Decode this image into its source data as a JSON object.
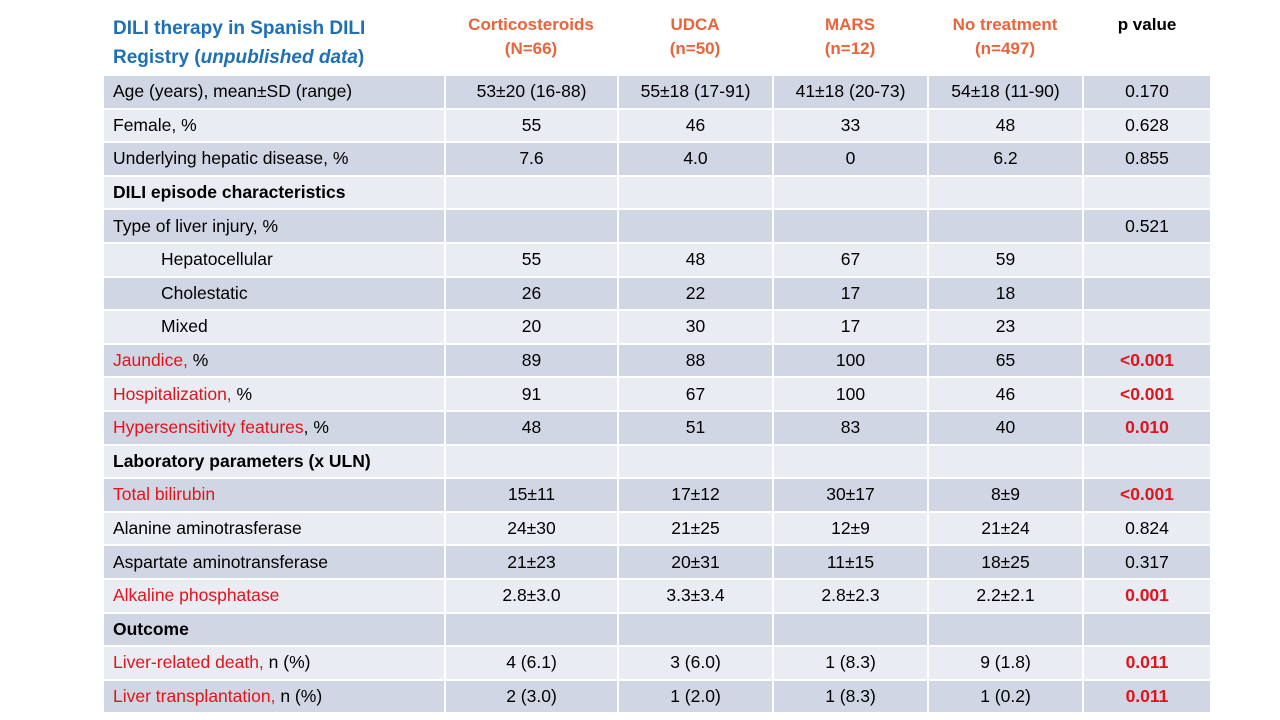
{
  "title": {
    "line1": "DILI therapy in Spanish DILI",
    "line2_prefix": "Registry (",
    "line2_italic": "unpublished data",
    "line2_suffix": ")"
  },
  "columns": [
    {
      "name": "Corticosteroids",
      "n": "(N=66)"
    },
    {
      "name": "UDCA",
      "n": "(n=50)"
    },
    {
      "name": "MARS",
      "n": "(n=12)"
    },
    {
      "name": "No treatment",
      "n": "(n=497)"
    },
    {
      "name": "p value",
      "n": ""
    }
  ],
  "colors": {
    "title": "#1f6fb5",
    "column_header": "#e8643a",
    "highlight": "#e0141c",
    "row_dark": "#d0d6e4",
    "row_light": "#e9ecf3"
  },
  "rows": [
    {
      "label": "Age (years), mean±SD  (range)",
      "values": [
        "53±20 (16-88)",
        "55±18 (17-91)",
        "41±18 (20-73)",
        "54±18 (11-90)",
        "0.170"
      ]
    },
    {
      "label": "Female, %",
      "values": [
        "55",
        "46",
        "33",
        "48",
        "0.628"
      ]
    },
    {
      "label": "Underlying  hepatic disease, %",
      "values": [
        "7.6",
        "4.0",
        "0",
        "6.2",
        "0.855"
      ]
    },
    {
      "label": "DILI episode characteristics",
      "values": [
        "",
        "",
        "",
        "",
        ""
      ]
    },
    {
      "label": "Type of liver injury,  %",
      "values": [
        "",
        "",
        "",
        "",
        "0.521"
      ]
    },
    {
      "label": "Hepatocellular",
      "values": [
        "55",
        "48",
        "67",
        "59",
        ""
      ]
    },
    {
      "label": "Cholestatic",
      "values": [
        "26",
        "22",
        "17",
        "18",
        ""
      ]
    },
    {
      "label": "Mixed",
      "values": [
        "20",
        "30",
        "17",
        "23",
        ""
      ]
    },
    {
      "label_red": "Jaundice,",
      "label_rest": " %",
      "values": [
        "89",
        "88",
        "100",
        "65",
        "<0.001"
      ]
    },
    {
      "label_red": "Hospitalization,",
      "label_rest": "  %",
      "values": [
        "91",
        "67",
        "100",
        "46",
        "<0.001"
      ]
    },
    {
      "label_red": "Hypersensitivity  features",
      "label_rest": ", %",
      "values": [
        "48",
        "51",
        "83",
        "40",
        "0.010"
      ]
    },
    {
      "label": "Laboratory parameters (x ULN)",
      "values": [
        "",
        "",
        "",
        "",
        ""
      ]
    },
    {
      "label_red": "Total bilirubin",
      "values": [
        "15±11",
        "17±12",
        "30±17",
        "8±9",
        "<0.001"
      ]
    },
    {
      "label": "Alanine  aminotrasferase",
      "values": [
        "24±30",
        "21±25",
        "12±9",
        "21±24",
        "0.824"
      ]
    },
    {
      "label": "Aspartate aminotransferase",
      "values": [
        "21±23",
        "20±31",
        "11±15",
        "18±25",
        "0.317"
      ]
    },
    {
      "label_red": "Alkaline  phosphatase",
      "values": [
        "2.8±3.0",
        "3.3±3.4",
        "2.8±2.3",
        "2.2±2.1",
        "0.001"
      ]
    },
    {
      "label": "Outcome",
      "values": [
        "",
        "",
        "",
        "",
        ""
      ]
    },
    {
      "label_red": "Liver-related death,",
      "label_rest": " n (%)",
      "values": [
        "4 (6.1)",
        "3 (6.0)",
        "1 (8.3)",
        "9 (1.8)",
        "0.011"
      ]
    },
    {
      "label_red": "Liver transplantation,",
      "label_rest": " n (%)",
      "values": [
        "2 (3.0)",
        "1 (2.0)",
        "1 (8.3)",
        "1 (0.2)",
        "0.011"
      ]
    }
  ]
}
